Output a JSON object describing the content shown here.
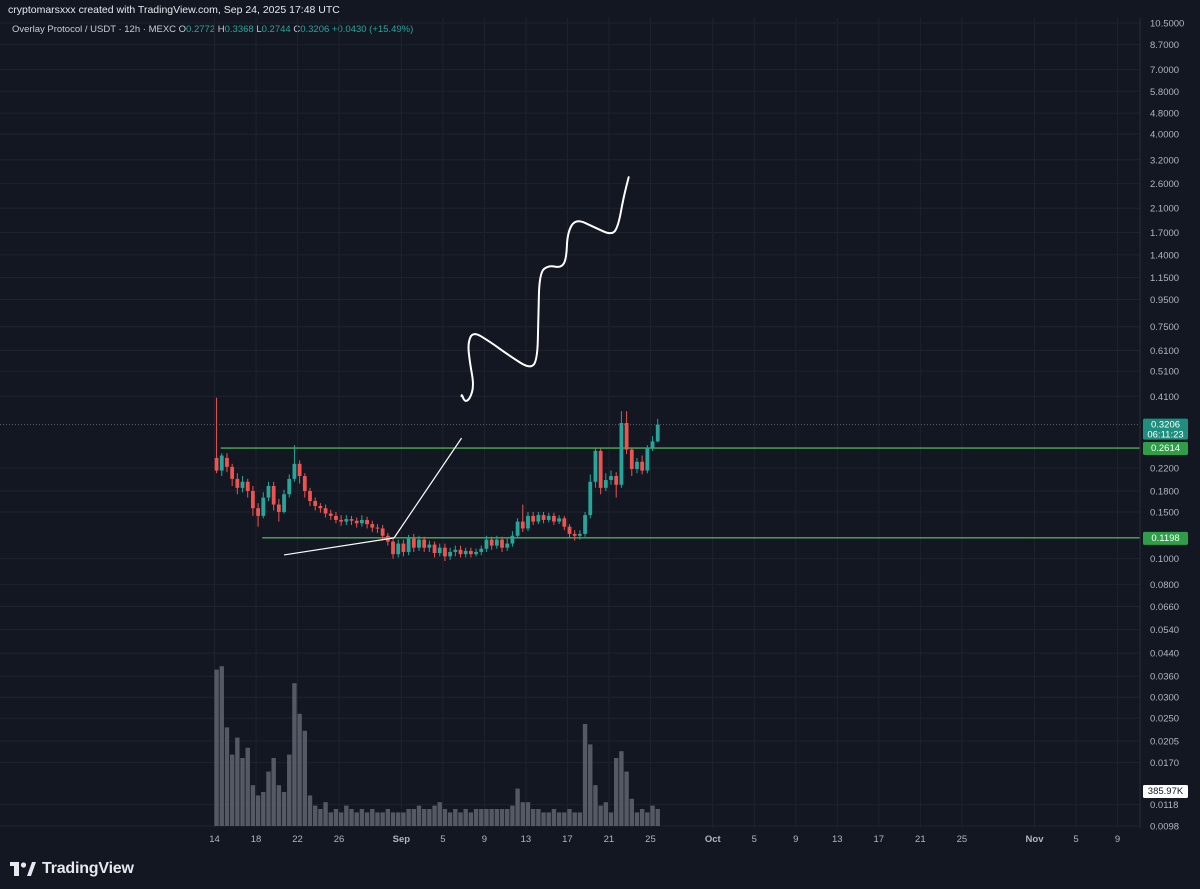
{
  "header": {
    "credit": "cryptomarsxxx created with TradingView.com, Sep 24, 2025 17:48 UTC"
  },
  "legend": {
    "symbol": "Overlay Protocol / USDT · 12h · MEXC",
    "open_label": "O",
    "open": "0.2772",
    "high_label": "H",
    "high": "0.3368",
    "low_label": "L",
    "low": "0.2744",
    "close_label": "C",
    "close": "0.3206",
    "change": "+0.0430 (+15.49%)"
  },
  "brand": {
    "name": "TradingView"
  },
  "colors": {
    "background": "#131722",
    "grid": "#1f232e",
    "up": "#26a69a",
    "down": "#ef5350",
    "level_line": "#4caf50",
    "volume": "#5d606b",
    "drawing": "#ffffff"
  },
  "chart_data": {
    "type": "candlestick",
    "title": "Overlay Protocol / USDT · 12h · MEXC",
    "scale": "log",
    "ylim": [
      0.0098,
      10.5
    ],
    "y_ticks": [
      "10.5000",
      "8.7000",
      "7.0000",
      "5.8000",
      "4.8000",
      "4.0000",
      "3.2000",
      "2.6000",
      "2.1000",
      "1.7000",
      "1.4000",
      "1.1500",
      "0.9500",
      "0.7500",
      "0.6100",
      "0.5100",
      "0.4100",
      "0.2200",
      "0.1800",
      "0.1500",
      "0.1000",
      "0.0800",
      "0.0660",
      "0.0540",
      "0.0440",
      "0.0360",
      "0.0300",
      "0.0250",
      "0.0205",
      "0.0170",
      "0.0118",
      "0.0098"
    ],
    "x_ticks": [
      "14",
      "18",
      "22",
      "26",
      "Sep",
      "5",
      "9",
      "13",
      "17",
      "21",
      "25",
      "Oct",
      "5",
      "9",
      "13",
      "17",
      "21",
      "25",
      "Nov",
      "5",
      "9"
    ],
    "x_start_date": "2025-08-14",
    "bars_per_day": 2,
    "price_labels": {
      "last": "0.3206",
      "countdown": "06:11:23",
      "resistance": "0.2614",
      "support": "0.1198",
      "volume": "385.97K"
    },
    "horizontal_levels": [
      {
        "price": 0.2614,
        "from_day": 0.6,
        "label": "0.2614"
      },
      {
        "price": 0.1198,
        "from_day": 4.6,
        "label": "0.1198"
      }
    ],
    "trendlines": [
      {
        "from": [
          6.7,
          0.1033
        ],
        "to": [
          17.3,
          0.1198
        ]
      },
      {
        "from": [
          17.3,
          0.1198
        ],
        "to": [
          23.8,
          0.285
        ]
      }
    ],
    "projection_path": [
      [
        23.8,
        0.41
      ],
      [
        23.8,
        0.42
      ],
      [
        24.1,
        0.39
      ],
      [
        24.6,
        0.4
      ],
      [
        25.0,
        0.45
      ],
      [
        24.6,
        0.55
      ],
      [
        24.4,
        0.65
      ],
      [
        24.9,
        0.72
      ],
      [
        26.5,
        0.66
      ],
      [
        28.5,
        0.58
      ],
      [
        30.4,
        0.52
      ],
      [
        31.1,
        0.56
      ],
      [
        31.2,
        0.8
      ],
      [
        31.3,
        1.2
      ],
      [
        32.2,
        1.28
      ],
      [
        33.4,
        1.25
      ],
      [
        33.9,
        1.35
      ],
      [
        34.0,
        1.7
      ],
      [
        34.8,
        1.92
      ],
      [
        36.6,
        1.78
      ],
      [
        38.3,
        1.66
      ],
      [
        38.9,
        1.8
      ],
      [
        39.4,
        2.3
      ],
      [
        39.9,
        2.75
      ]
    ],
    "candles": [
      [
        0.2,
        0.24,
        0.215,
        0.405,
        0.21
      ],
      [
        0.7,
        0.215,
        0.245,
        0.25,
        0.205
      ],
      [
        1.2,
        0.24,
        0.222,
        0.25,
        0.212
      ],
      [
        1.7,
        0.222,
        0.2,
        0.228,
        0.188
      ],
      [
        2.2,
        0.2,
        0.185,
        0.21,
        0.175
      ],
      [
        2.7,
        0.185,
        0.195,
        0.205,
        0.178
      ],
      [
        3.2,
        0.195,
        0.18,
        0.2,
        0.17
      ],
      [
        3.7,
        0.18,
        0.155,
        0.188,
        0.145
      ],
      [
        4.2,
        0.155,
        0.145,
        0.162,
        0.132
      ],
      [
        4.7,
        0.145,
        0.17,
        0.178,
        0.142
      ],
      [
        5.2,
        0.17,
        0.188,
        0.195,
        0.165
      ],
      [
        5.7,
        0.188,
        0.16,
        0.195,
        0.152
      ],
      [
        6.2,
        0.16,
        0.15,
        0.168,
        0.138
      ],
      [
        6.7,
        0.15,
        0.175,
        0.182,
        0.148
      ],
      [
        7.2,
        0.175,
        0.2,
        0.208,
        0.17
      ],
      [
        7.7,
        0.2,
        0.228,
        0.268,
        0.195
      ],
      [
        8.2,
        0.228,
        0.205,
        0.235,
        0.192
      ],
      [
        8.7,
        0.205,
        0.18,
        0.21,
        0.17
      ],
      [
        9.2,
        0.18,
        0.165,
        0.185,
        0.158
      ],
      [
        9.7,
        0.165,
        0.158,
        0.17,
        0.152
      ],
      [
        10.2,
        0.158,
        0.155,
        0.162,
        0.149
      ],
      [
        10.7,
        0.155,
        0.148,
        0.16,
        0.143
      ],
      [
        11.2,
        0.148,
        0.145,
        0.153,
        0.14
      ],
      [
        11.7,
        0.145,
        0.14,
        0.15,
        0.136
      ],
      [
        12.2,
        0.14,
        0.138,
        0.146,
        0.133
      ],
      [
        12.7,
        0.138,
        0.141,
        0.146,
        0.134
      ],
      [
        13.2,
        0.141,
        0.139,
        0.145,
        0.134
      ],
      [
        13.7,
        0.139,
        0.136,
        0.143,
        0.131
      ],
      [
        14.2,
        0.136,
        0.14,
        0.146,
        0.132
      ],
      [
        14.7,
        0.14,
        0.135,
        0.144,
        0.13
      ],
      [
        15.2,
        0.135,
        0.131,
        0.139,
        0.126
      ],
      [
        15.7,
        0.131,
        0.13,
        0.135,
        0.125
      ],
      [
        16.2,
        0.13,
        0.122,
        0.134,
        0.117
      ],
      [
        16.7,
        0.122,
        0.116,
        0.125,
        0.112
      ],
      [
        17.2,
        0.116,
        0.104,
        0.12,
        0.1
      ],
      [
        17.7,
        0.104,
        0.114,
        0.118,
        0.101
      ],
      [
        18.2,
        0.114,
        0.106,
        0.118,
        0.102
      ],
      [
        18.7,
        0.106,
        0.119,
        0.123,
        0.103
      ],
      [
        19.2,
        0.119,
        0.11,
        0.124,
        0.106
      ],
      [
        19.7,
        0.11,
        0.118,
        0.122,
        0.107
      ],
      [
        20.2,
        0.118,
        0.11,
        0.121,
        0.106
      ],
      [
        20.7,
        0.11,
        0.113,
        0.117,
        0.106
      ],
      [
        21.2,
        0.113,
        0.105,
        0.116,
        0.101
      ],
      [
        21.7,
        0.105,
        0.11,
        0.114,
        0.102
      ],
      [
        22.2,
        0.11,
        0.102,
        0.114,
        0.098
      ],
      [
        22.7,
        0.102,
        0.106,
        0.11,
        0.099
      ],
      [
        23.2,
        0.106,
        0.108,
        0.112,
        0.102
      ],
      [
        23.7,
        0.108,
        0.104,
        0.112,
        0.101
      ],
      [
        24.2,
        0.104,
        0.107,
        0.11,
        0.101
      ],
      [
        24.7,
        0.107,
        0.104,
        0.11,
        0.101
      ],
      [
        25.2,
        0.104,
        0.106,
        0.109,
        0.102
      ],
      [
        25.7,
        0.106,
        0.109,
        0.112,
        0.103
      ],
      [
        26.2,
        0.109,
        0.118,
        0.122,
        0.106
      ],
      [
        26.7,
        0.118,
        0.112,
        0.121,
        0.108
      ],
      [
        27.2,
        0.112,
        0.118,
        0.122,
        0.109
      ],
      [
        27.7,
        0.118,
        0.11,
        0.121,
        0.106
      ],
      [
        28.2,
        0.11,
        0.114,
        0.12,
        0.107
      ],
      [
        28.7,
        0.114,
        0.122,
        0.127,
        0.111
      ],
      [
        29.2,
        0.122,
        0.138,
        0.142,
        0.12
      ],
      [
        29.7,
        0.138,
        0.13,
        0.16,
        0.126
      ],
      [
        30.2,
        0.13,
        0.145,
        0.15,
        0.127
      ],
      [
        30.7,
        0.145,
        0.138,
        0.15,
        0.134
      ],
      [
        31.2,
        0.138,
        0.146,
        0.15,
        0.135
      ],
      [
        31.7,
        0.146,
        0.14,
        0.15,
        0.136
      ],
      [
        32.2,
        0.14,
        0.145,
        0.149,
        0.137
      ],
      [
        32.7,
        0.145,
        0.138,
        0.149,
        0.134
      ],
      [
        33.2,
        0.138,
        0.142,
        0.146,
        0.135
      ],
      [
        33.7,
        0.142,
        0.132,
        0.145,
        0.128
      ],
      [
        34.2,
        0.132,
        0.124,
        0.135,
        0.12
      ],
      [
        34.7,
        0.124,
        0.122,
        0.128,
        0.117
      ],
      [
        35.2,
        0.122,
        0.124,
        0.128,
        0.118
      ],
      [
        35.7,
        0.124,
        0.146,
        0.15,
        0.121
      ],
      [
        36.2,
        0.146,
        0.195,
        0.208,
        0.142
      ],
      [
        36.7,
        0.195,
        0.255,
        0.262,
        0.185
      ],
      [
        37.2,
        0.255,
        0.185,
        0.26,
        0.175
      ],
      [
        37.7,
        0.185,
        0.198,
        0.21,
        0.18
      ],
      [
        38.2,
        0.198,
        0.205,
        0.215,
        0.19
      ],
      [
        38.7,
        0.205,
        0.19,
        0.212,
        0.17
      ],
      [
        39.2,
        0.19,
        0.325,
        0.36,
        0.185
      ],
      [
        39.7,
        0.325,
        0.258,
        0.36,
        0.248
      ],
      [
        40.2,
        0.258,
        0.218,
        0.262,
        0.205
      ],
      [
        40.7,
        0.218,
        0.232,
        0.24,
        0.21
      ],
      [
        41.2,
        0.232,
        0.215,
        0.245,
        0.208
      ],
      [
        41.7,
        0.215,
        0.262,
        0.268,
        0.21
      ],
      [
        42.2,
        0.262,
        0.277,
        0.29,
        0.255
      ],
      [
        42.7,
        0.277,
        0.3206,
        0.3368,
        0.2744
      ]
    ],
    "volume": [
      46,
      47,
      29,
      21,
      26,
      20,
      23,
      12,
      9,
      10,
      16,
      20,
      12,
      10,
      21,
      42,
      33,
      28,
      9,
      6,
      5,
      7,
      4,
      5,
      4,
      6,
      5,
      4,
      5,
      4,
      5,
      4,
      4,
      5,
      4,
      4,
      4,
      5,
      5,
      6,
      5,
      5,
      6,
      7,
      5,
      4,
      5,
      4,
      5,
      4,
      5,
      5,
      5,
      5,
      5,
      5,
      5,
      6,
      11,
      7,
      7,
      5,
      5,
      4,
      4,
      5,
      4,
      4,
      5,
      4,
      4,
      30,
      24,
      12,
      6,
      7,
      4,
      20,
      22,
      16,
      8,
      4,
      5,
      4,
      6,
      5
    ]
  }
}
